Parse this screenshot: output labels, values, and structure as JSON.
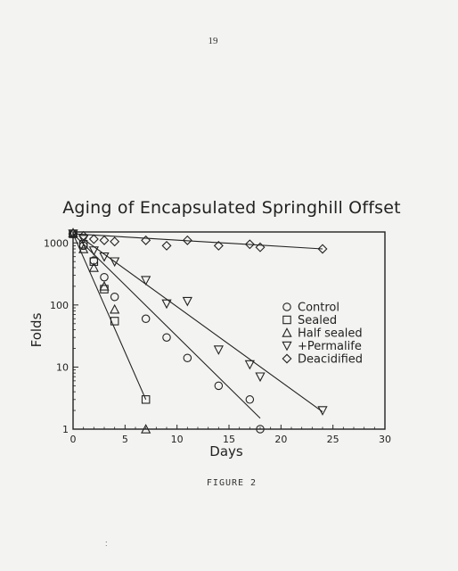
{
  "page": {
    "page_number": "19",
    "caption": "FIGURE 2",
    "stray_mark": ":"
  },
  "chart_data": {
    "type": "scatter",
    "title": "Aging of Encapsulated Springhill Offset",
    "xlabel": "Days",
    "ylabel": "Folds",
    "xlim": [
      0,
      30
    ],
    "ylim": [
      1,
      1500
    ],
    "y_scale": "log",
    "x_ticks": [
      0,
      5,
      10,
      15,
      20,
      25,
      30
    ],
    "y_ticks": [
      1,
      10,
      100,
      1000
    ],
    "y_tick_labels": [
      "1",
      "10",
      "100",
      "1000"
    ],
    "legend_position": "right",
    "series": [
      {
        "name": "Control",
        "marker": "circle",
        "x": [
          0,
          1,
          2,
          3,
          4,
          7,
          9,
          11,
          14,
          17,
          18
        ],
        "y": [
          1400,
          900,
          520,
          280,
          135,
          60,
          30,
          14,
          5,
          3,
          1
        ],
        "fit": {
          "x": [
            0,
            18
          ],
          "y": [
            1400,
            1.5
          ]
        }
      },
      {
        "name": "Sealed",
        "marker": "square",
        "x": [
          0,
          1,
          2,
          3,
          4,
          7
        ],
        "y": [
          1400,
          950,
          500,
          180,
          55,
          3
        ],
        "fit": {
          "x": [
            0,
            7
          ],
          "y": [
            1400,
            3
          ]
        }
      },
      {
        "name": "Half sealed",
        "marker": "triangle-up",
        "x": [
          0,
          1,
          2,
          3,
          4,
          7
        ],
        "y": [
          1450,
          800,
          400,
          200,
          85,
          1
        ],
        "fit": null
      },
      {
        "name": "+Permalife",
        "marker": "triangle-down",
        "x": [
          0,
          1,
          2,
          3,
          4,
          7,
          9,
          11,
          14,
          17,
          18,
          24
        ],
        "y": [
          1400,
          1150,
          750,
          600,
          500,
          250,
          105,
          115,
          19,
          11,
          7,
          2
        ],
        "fit": {
          "x": [
            1,
            24
          ],
          "y": [
            1150,
            1.9
          ]
        }
      },
      {
        "name": "Deacidified",
        "marker": "diamond",
        "x": [
          0,
          1,
          2,
          3,
          4,
          7,
          9,
          11,
          14,
          17,
          18,
          24
        ],
        "y": [
          1400,
          1300,
          1150,
          1100,
          1050,
          1100,
          900,
          1100,
          900,
          950,
          850,
          800
        ],
        "fit": {
          "x": [
            0,
            24
          ],
          "y": [
            1400,
            800
          ]
        }
      }
    ]
  }
}
